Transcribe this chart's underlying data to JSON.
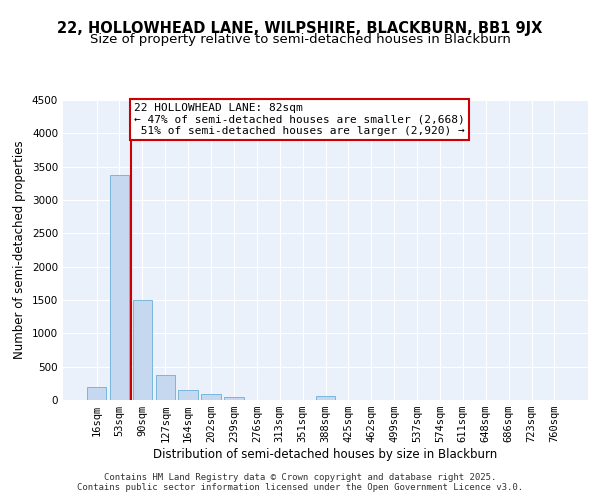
{
  "title1": "22, HOLLOWHEAD LANE, WILPSHIRE, BLACKBURN, BB1 9JX",
  "title2": "Size of property relative to semi-detached houses in Blackburn",
  "xlabel": "Distribution of semi-detached houses by size in Blackburn",
  "ylabel": "Number of semi-detached properties",
  "categories": [
    "16sqm",
    "53sqm",
    "90sqm",
    "127sqm",
    "164sqm",
    "202sqm",
    "239sqm",
    "276sqm",
    "313sqm",
    "351sqm",
    "388sqm",
    "425sqm",
    "462sqm",
    "499sqm",
    "537sqm",
    "574sqm",
    "611sqm",
    "648sqm",
    "686sqm",
    "723sqm",
    "760sqm"
  ],
  "values": [
    200,
    3380,
    1500,
    380,
    155,
    90,
    45,
    0,
    0,
    0,
    55,
    0,
    0,
    0,
    0,
    0,
    0,
    0,
    0,
    0,
    0
  ],
  "bar_color": "#c5d8f0",
  "bar_edge_color": "#6aafd6",
  "vline_color": "#cc0000",
  "vline_x": 1.5,
  "annotation_text": "22 HOLLOWHEAD LANE: 82sqm\n← 47% of semi-detached houses are smaller (2,668)\n 51% of semi-detached houses are larger (2,920) →",
  "annotation_box_edge_color": "#cc0000",
  "footer": "Contains HM Land Registry data © Crown copyright and database right 2025.\nContains public sector information licensed under the Open Government Licence v3.0.",
  "ylim": [
    0,
    4500
  ],
  "yticks": [
    0,
    500,
    1000,
    1500,
    2000,
    2500,
    3000,
    3500,
    4000,
    4500
  ],
  "background_color": "#eaf1fb",
  "grid_color": "#ffffff",
  "title1_fontsize": 10.5,
  "title2_fontsize": 9.5,
  "axis_label_fontsize": 8.5,
  "tick_fontsize": 7.5,
  "footer_fontsize": 6.5,
  "annotation_fontsize": 8
}
